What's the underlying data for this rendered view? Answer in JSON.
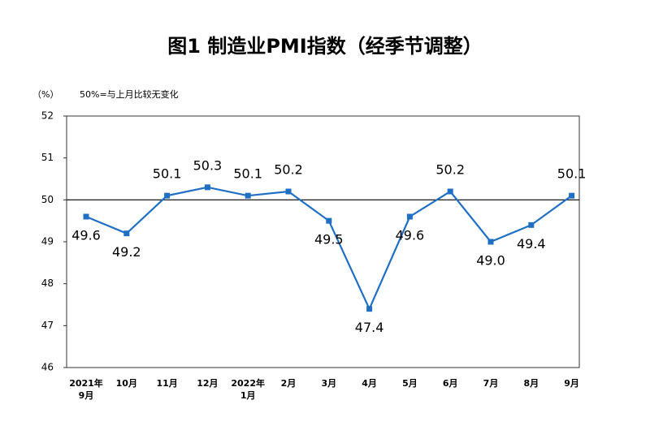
{
  "chart_data": {
    "type": "line",
    "title": "图1 制造业PMI指数（经季节调整）",
    "y_label": "（%）",
    "annotation": "50%=与上月比较无变化",
    "categories": [
      "2021年\n9月",
      "10月",
      "11月",
      "12月",
      "2022年\n1月",
      "2月",
      "3月",
      "4月",
      "5月",
      "6月",
      "7月",
      "8月",
      "9月"
    ],
    "series": [
      {
        "name": "制造业PMI",
        "color": "#1f6fc5",
        "values": [
          49.6,
          49.2,
          50.1,
          50.3,
          50.1,
          50.2,
          49.5,
          47.4,
          49.6,
          50.2,
          49.0,
          49.4,
          50.1
        ],
        "value_labels": [
          "49.6",
          "49.2",
          "50.1",
          "50.3",
          "50.1",
          "50.2",
          "49.5",
          "47.4",
          "49.6",
          "50.2",
          "49.0",
          "49.4",
          "50.1"
        ]
      }
    ],
    "ylim": [
      46,
      52
    ],
    "yticks": [
      46,
      47,
      48,
      49,
      50,
      51,
      52
    ],
    "reference_line": 50
  }
}
